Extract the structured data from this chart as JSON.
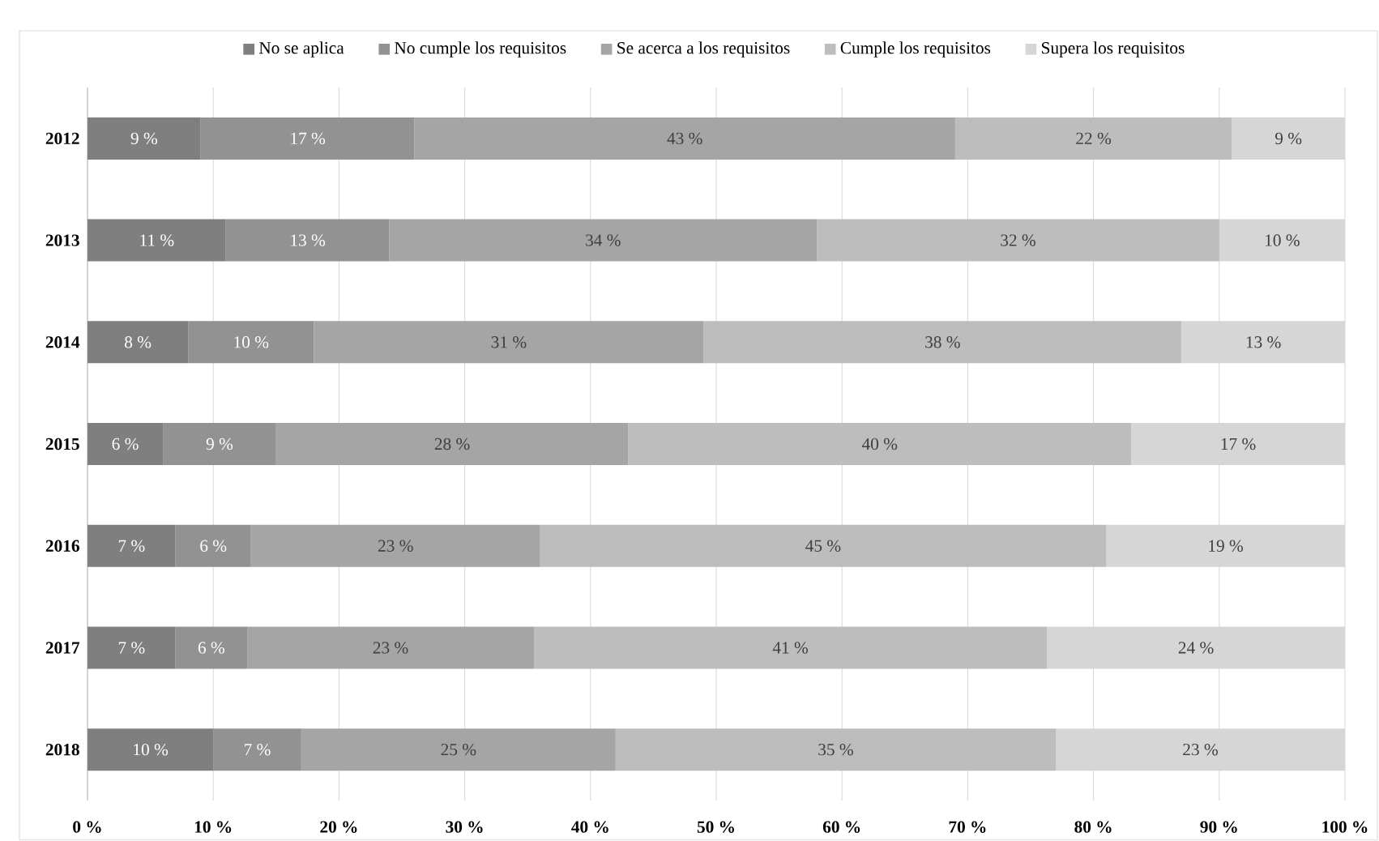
{
  "chart_data": {
    "type": "bar",
    "orientation": "horizontal",
    "stacked": true,
    "categories": [
      "2012",
      "2013",
      "2014",
      "2015",
      "2016",
      "2017",
      "2018"
    ],
    "series": [
      {
        "name": "No se aplica",
        "color": "#7f7f7f",
        "values": [
          9,
          11,
          8,
          6,
          7,
          7,
          10
        ],
        "value_labels": [
          "9 %",
          "11 %",
          "8 %",
          "6 %",
          "7 %",
          "7 %",
          "10 %"
        ]
      },
      {
        "name": "No cumple los requisitos",
        "color": "#929292",
        "values": [
          17,
          13,
          10,
          9,
          6,
          5.7,
          7
        ],
        "value_labels": [
          "17 %",
          "13 %",
          "10 %",
          "9 %",
          "6 %",
          "6 %",
          "7 %"
        ]
      },
      {
        "name": "Se acerca a los requisitos",
        "color": "#a5a5a5",
        "values": [
          43,
          34,
          31,
          28,
          23,
          22.8,
          25
        ],
        "value_labels": [
          "43 %",
          "34 %",
          "31 %",
          "28 %",
          "23 %",
          "23 %",
          "25 %"
        ]
      },
      {
        "name": "Cumple los requisitos",
        "color": "#bdbdbd",
        "values": [
          22,
          32,
          38,
          40,
          45,
          40.8,
          35
        ],
        "value_labels": [
          "22 %",
          "32 %",
          "38 %",
          "40 %",
          "45 %",
          "41 %",
          "35 %"
        ]
      },
      {
        "name": "Supera los requisitos",
        "color": "#d6d6d6",
        "values": [
          9,
          10,
          13,
          17,
          19,
          23.7,
          23
        ],
        "value_labels": [
          "9 %",
          "10 %",
          "13 %",
          "17 %",
          "19 %",
          "24 %",
          "23 %"
        ]
      }
    ],
    "xlim": [
      0,
      100
    ],
    "xticks": [
      {
        "value": 0,
        "label": "0 %"
      },
      {
        "value": 10,
        "label": "10 %"
      },
      {
        "value": 20,
        "label": "20 %"
      },
      {
        "value": 30,
        "label": "30 %"
      },
      {
        "value": 40,
        "label": "40 %"
      },
      {
        "value": 50,
        "label": "50 %"
      },
      {
        "value": 60,
        "label": "60 %"
      },
      {
        "value": 70,
        "label": "70 %"
      },
      {
        "value": 80,
        "label": "80 %"
      },
      {
        "value": 90,
        "label": "90 %"
      },
      {
        "value": 100,
        "label": "100 %"
      }
    ],
    "grid": "x",
    "legend": "top"
  }
}
